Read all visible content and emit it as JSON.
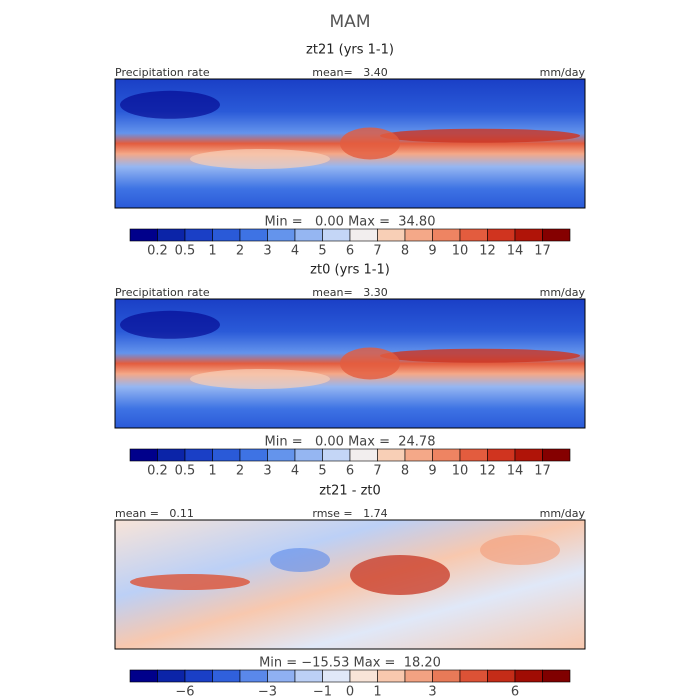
{
  "title": "MAM",
  "panels": [
    {
      "title": "zt21 (yrs 1-1)",
      "header": {
        "left": "Precipitation rate",
        "center": "mean=   3.40",
        "right": "mm/day"
      },
      "stats": "Min =   0.00 Max =  34.80",
      "colorbar": {
        "colors": [
          "#00008b",
          "#0b24a8",
          "#1a3fc6",
          "#2a5ad8",
          "#3e73e4",
          "#6494ec",
          "#95b6f2",
          "#c4d6f6",
          "#f2eeee",
          "#f8cfb6",
          "#f4a888",
          "#ee8462",
          "#e35c3e",
          "#d0341f",
          "#b01408",
          "#850000"
        ],
        "labels": [
          "0.2",
          "0.5",
          "1",
          "2",
          "3",
          "4",
          "5",
          "6",
          "7",
          "8",
          "9",
          "10",
          "12",
          "14",
          "17"
        ]
      }
    },
    {
      "title": "zt0 (yrs 1-1)",
      "header": {
        "left": "Precipitation rate",
        "center": "mean=   3.30",
        "right": "mm/day"
      },
      "stats": "Min =   0.00 Max =  24.78",
      "colorbar": {
        "colors": [
          "#00008b",
          "#0b24a8",
          "#1a3fc6",
          "#2a5ad8",
          "#3e73e4",
          "#6494ec",
          "#95b6f2",
          "#c4d6f6",
          "#f2eeee",
          "#f8cfb6",
          "#f4a888",
          "#ee8462",
          "#e35c3e",
          "#d0341f",
          "#b01408",
          "#850000"
        ],
        "labels": [
          "0.2",
          "0.5",
          "1",
          "2",
          "3",
          "4",
          "5",
          "6",
          "7",
          "8",
          "9",
          "10",
          "12",
          "14",
          "17"
        ]
      }
    },
    {
      "title": "zt21 - zt0",
      "header": {
        "left": "mean =   0.11",
        "center": "rmse =   1.74",
        "right": "mm/day"
      },
      "stats": "Min = −15.53 Max =  18.20",
      "colorbar": {
        "colors": [
          "#00008b",
          "#0b24a8",
          "#1a3fc6",
          "#3060dc",
          "#5a88ea",
          "#8fb0f2",
          "#bcd0f6",
          "#e0e8f8",
          "#f8e4d8",
          "#f8c8ae",
          "#f2a282",
          "#e87a58",
          "#dc5236",
          "#c42c18",
          "#a00c04",
          "#800000"
        ],
        "labels": [
          null,
          "−6",
          null,
          null,
          "−3",
          null,
          "−1",
          "0",
          "1",
          null,
          "3",
          null,
          null,
          "6",
          null
        ]
      }
    }
  ]
}
